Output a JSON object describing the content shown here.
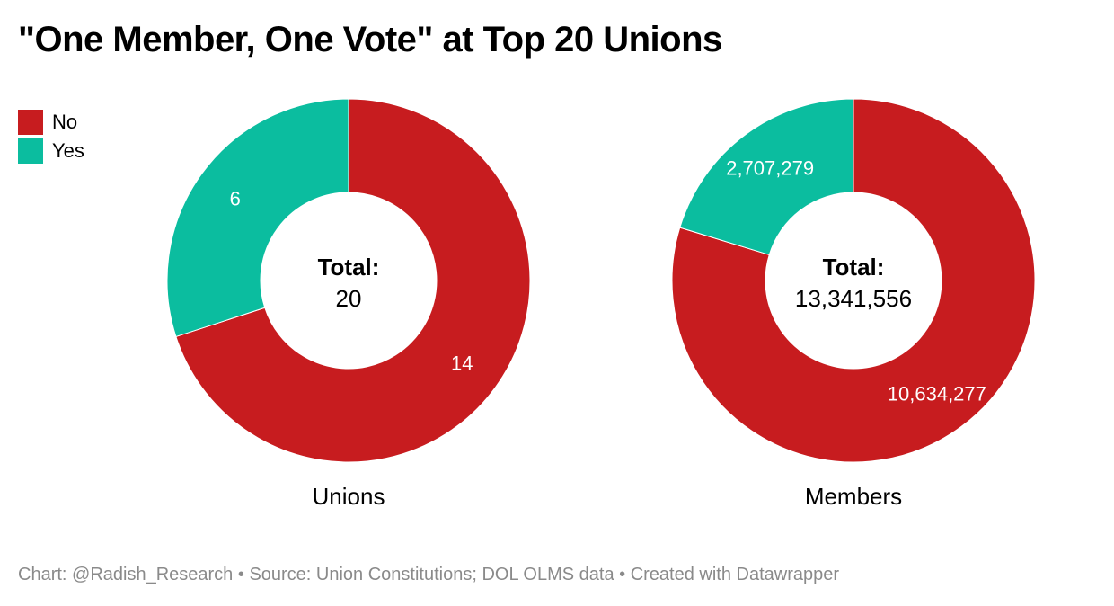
{
  "title": "\"One Member, One Vote\" at Top 20 Unions",
  "legend": [
    {
      "label": "No",
      "color": "#c71c1f"
    },
    {
      "label": "Yes",
      "color": "#0bbd9f"
    }
  ],
  "footer": {
    "credit": "Chart: @Radish_Research",
    "source": "Source: Union Constitutions; DOL OLMS data",
    "tool": "Created with Datawrapper",
    "separator": "•"
  },
  "chart_data": [
    {
      "type": "pie",
      "donut": true,
      "label": "Unions",
      "center_label": "Total:",
      "center_value": "20",
      "slices": [
        {
          "name": "No",
          "value": 14,
          "display": "14",
          "color": "#c71c1f"
        },
        {
          "name": "Yes",
          "value": 6,
          "display": "6",
          "color": "#0bbd9f"
        }
      ]
    },
    {
      "type": "pie",
      "donut": true,
      "label": "Members",
      "center_label": "Total:",
      "center_value": "13,341,556",
      "slices": [
        {
          "name": "No",
          "value": 10634277,
          "display": "10,634,277",
          "color": "#c71c1f"
        },
        {
          "name": "Yes",
          "value": 2707279,
          "display": "2,707,279",
          "color": "#0bbd9f"
        }
      ]
    }
  ]
}
